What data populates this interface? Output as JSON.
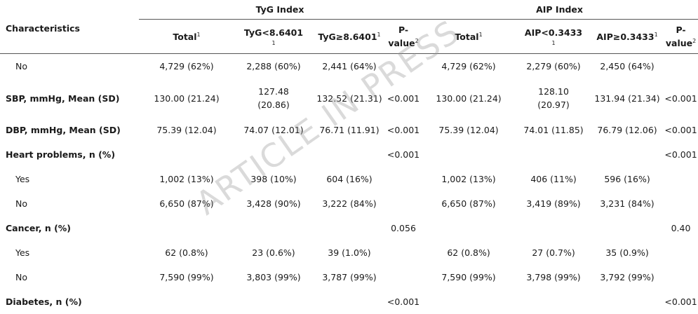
{
  "watermark": "ARTICLE IN PRESS",
  "header": {
    "characteristics": "Characteristics",
    "groups": [
      "TyG Index",
      "AIP Index"
    ],
    "tyg": {
      "total": "Total",
      "total_note": "1",
      "low": "TyG<8.6401",
      "low_note": "1",
      "high": "TyG≥8.6401",
      "high_note": "1",
      "p_line1": "P-",
      "p_line2": "value",
      "p_note": "2"
    },
    "aip": {
      "total": "Total",
      "total_note": "1",
      "low": "AIP<0.3433",
      "low_note": "1",
      "high": "AIP≥0.3433",
      "high_note": "1",
      "p_line1": "P-",
      "p_line2": "value",
      "p_note": "2"
    }
  },
  "rows": [
    {
      "label": "No",
      "cells": [
        "4,729 (62%)",
        "2,288 (60%)",
        "2,441 (64%)",
        "",
        "4,729 (62%)",
        "2,279 (60%)",
        "2,450 (64%)",
        ""
      ]
    },
    {
      "label": "SBP, mmHg, Mean (SD)",
      "cells": [
        "130.00 (21.24)",
        "127.48 (20.86)",
        "132.52 (21.31)",
        "<0.001",
        "130.00 (21.24)",
        "128.10 (20.97)",
        "131.94 (21.34)",
        "<0.001"
      ]
    },
    {
      "label": "DBP, mmHg, Mean (SD)",
      "cells": [
        "75.39 (12.04)",
        "74.07 (12.01)",
        "76.71 (11.91)",
        "<0.001",
        "75.39 (12.04)",
        "74.01 (11.85)",
        "76.79 (12.06)",
        "<0.001"
      ]
    },
    {
      "label": "Heart problems, n (%)",
      "cells": [
        "",
        "",
        "",
        "<0.001",
        "",
        "",
        "",
        "<0.001"
      ]
    },
    {
      "label": "Yes",
      "cells": [
        "1,002 (13%)",
        "398 (10%)",
        "604 (16%)",
        "",
        "1,002 (13%)",
        "406 (11%)",
        "596 (16%)",
        ""
      ]
    },
    {
      "label": "No",
      "cells": [
        "6,650 (87%)",
        "3,428 (90%)",
        "3,222 (84%)",
        "",
        "6,650 (87%)",
        "3,419 (89%)",
        "3,231 (84%)",
        ""
      ]
    },
    {
      "label": "Cancer, n (%)",
      "cells": [
        "",
        "",
        "",
        "0.056",
        "",
        "",
        "",
        "0.40"
      ]
    },
    {
      "label": "Yes",
      "cells": [
        "62 (0.8%)",
        "23 (0.6%)",
        "39 (1.0%)",
        "",
        "62 (0.8%)",
        "27 (0.7%)",
        "35 (0.9%)",
        ""
      ]
    },
    {
      "label": "No",
      "cells": [
        "7,590 (99%)",
        "3,803 (99%)",
        "3,787 (99%)",
        "",
        "7,590 (99%)",
        "3,798 (99%)",
        "3,792 (99%)",
        ""
      ]
    },
    {
      "label": "Diabetes, n (%)",
      "cells": [
        "",
        "",
        "",
        "<0.001",
        "",
        "",
        "",
        "<0.001"
      ]
    }
  ]
}
